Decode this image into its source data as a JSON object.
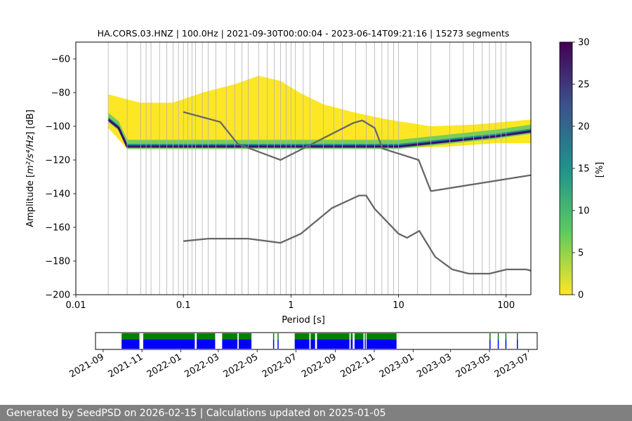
{
  "footer": {
    "text": "Generated by SeedPSD on 2026-02-15 | Calculations updated on 2025-01-05"
  },
  "chart_data": [
    {
      "type": "heatmap",
      "title": "HA.CORS.03.HNZ | 100.0Hz | 2021-09-30T00:00:04 - 2023-06-14T09:21:16 | 15273 segments",
      "xlabel": "Period [s]",
      "ylabel_main": "Amplitude [",
      "ylabel_math": "m²/s⁴/Hz",
      "ylabel_tail": "] [dB]",
      "x_scale": "log",
      "xlim": [
        0.01,
        170
      ],
      "ylim": [
        -200,
        -50
      ],
      "x_ticks": [
        {
          "value": 0.01,
          "label": "0.01"
        },
        {
          "value": 0.1,
          "label": "0.1"
        },
        {
          "value": 1,
          "label": "1"
        },
        {
          "value": 10,
          "label": "10"
        },
        {
          "value": 100,
          "label": "100"
        }
      ],
      "y_ticks": [
        {
          "value": -60,
          "label": "−60"
        },
        {
          "value": -80,
          "label": "−80"
        },
        {
          "value": -100,
          "label": "−100"
        },
        {
          "value": -120,
          "label": "−120"
        },
        {
          "value": -140,
          "label": "−140"
        },
        {
          "value": -160,
          "label": "−160"
        },
        {
          "value": -180,
          "label": "−180"
        },
        {
          "value": -200,
          "label": "−200"
        }
      ],
      "grid": "vertical",
      "vertical_grid_periods": [
        0.02,
        0.03,
        0.04,
        0.045,
        0.05,
        0.06,
        0.07,
        0.08,
        0.09,
        0.11,
        0.12,
        0.13,
        0.15,
        0.17,
        0.2,
        0.25,
        0.3,
        0.35,
        0.4,
        0.5,
        0.6,
        0.7,
        0.8,
        0.9,
        1.1,
        1.3,
        1.5,
        2,
        2.5,
        3,
        4,
        5,
        6,
        7,
        8,
        9,
        15,
        20,
        30,
        40,
        50,
        60,
        70,
        80,
        90
      ],
      "colorbar": {
        "label": "[%]",
        "min": 0,
        "max": 30,
        "ticks": [
          "0",
          "5",
          "10",
          "15",
          "20",
          "25",
          "30"
        ],
        "colormap": [
          "#fde725",
          "#5ec962",
          "#21918c",
          "#3b528b",
          "#440154"
        ]
      },
      "reference_curves": [
        {
          "name": "high noise model",
          "color": "#666666",
          "points": [
            [
              0.1,
              -91.5
            ],
            [
              0.22,
              -97.4
            ],
            [
              0.32,
              -110.5
            ],
            [
              0.8,
              -120
            ],
            [
              3.8,
              -98
            ],
            [
              4.6,
              -96.5
            ],
            [
              6,
              -101
            ],
            [
              7.1,
              -113.2
            ],
            [
              15.4,
              -120
            ],
            [
              20,
              -138.5
            ],
            [
              170,
              -129
            ]
          ]
        },
        {
          "name": "low noise model",
          "color": "#666666",
          "points": [
            [
              0.1,
              -168.2
            ],
            [
              0.17,
              -166.7
            ],
            [
              0.4,
              -166.7
            ],
            [
              0.8,
              -169.2
            ],
            [
              1.24,
              -163.7
            ],
            [
              2.4,
              -148.6
            ],
            [
              4.3,
              -141.1
            ],
            [
              5,
              -141.1
            ],
            [
              6,
              -149
            ],
            [
              10,
              -163.8
            ],
            [
              12,
              -166.2
            ],
            [
              15.6,
              -162.1
            ],
            [
              21.9,
              -177.5
            ],
            [
              31.6,
              -185
            ],
            [
              45,
              -187.5
            ],
            [
              70,
              -187.5
            ],
            [
              101,
              -185
            ],
            [
              154,
              -185
            ],
            [
              170,
              -185.7
            ]
          ]
        }
      ],
      "psd_density": {
        "mode_curve": [
          [
            0.02,
            -96
          ],
          [
            0.025,
            -101
          ],
          [
            0.03,
            -112
          ],
          [
            0.04,
            -112
          ],
          [
            0.3,
            -112
          ],
          [
            0.6,
            -112
          ],
          [
            1,
            -112
          ],
          [
            2,
            -112
          ],
          [
            5,
            -112
          ],
          [
            10,
            -112
          ],
          [
            20,
            -110
          ],
          [
            40,
            -108
          ],
          [
            80,
            -106
          ],
          [
            170,
            -103
          ]
        ],
        "upper_envelope": [
          [
            0.02,
            -81
          ],
          [
            0.03,
            -84
          ],
          [
            0.04,
            -86
          ],
          [
            0.08,
            -86
          ],
          [
            0.15,
            -80
          ],
          [
            0.3,
            -75
          ],
          [
            0.5,
            -70
          ],
          [
            0.8,
            -73
          ],
          [
            1.2,
            -80
          ],
          [
            2,
            -87
          ],
          [
            4,
            -92
          ],
          [
            8,
            -96
          ],
          [
            20,
            -100
          ],
          [
            50,
            -99
          ],
          [
            170,
            -96
          ]
        ],
        "lower_envelope": [
          [
            0.02,
            -101
          ],
          [
            0.03,
            -113.5
          ],
          [
            1,
            -113
          ],
          [
            10,
            -113
          ],
          [
            30,
            -112
          ],
          [
            80,
            -110
          ],
          [
            170,
            -110
          ]
        ]
      }
    },
    {
      "type": "timeline",
      "x_ticks": [
        "2021-09",
        "2021-11",
        "2022-01",
        "2022-03",
        "2022-05",
        "2022-07",
        "2022-09",
        "2022-11",
        "2023-01",
        "2023-03",
        "2023-05",
        "2023-07"
      ],
      "date_range": [
        "2021-08-20",
        "2023-07-15"
      ],
      "tick_dates": [
        "2021-09-01",
        "2021-11-01",
        "2022-01-01",
        "2022-03-01",
        "2022-05-01",
        "2022-07-01",
        "2022-09-01",
        "2022-11-01",
        "2023-01-01",
        "2023-03-01",
        "2023-05-01",
        "2023-07-01"
      ],
      "colors": {
        "data": "#0000ff",
        "processed": "#008000"
      },
      "segments": [
        [
          "2021-09-30",
          "2021-10-28"
        ],
        [
          "2021-11-03",
          "2022-01-23"
        ],
        [
          "2022-01-26",
          "2022-02-24"
        ],
        [
          "2022-03-07",
          "2022-03-31"
        ],
        [
          "2022-04-02",
          "2022-04-22"
        ],
        [
          "2022-05-26",
          "2022-05-27"
        ],
        [
          "2022-06-02",
          "2022-06-03"
        ],
        [
          "2022-06-29",
          "2022-07-22"
        ],
        [
          "2022-07-24",
          "2022-07-31"
        ],
        [
          "2022-08-03",
          "2022-09-23"
        ],
        [
          "2022-09-25",
          "2022-09-28"
        ],
        [
          "2022-10-01",
          "2022-10-15"
        ],
        [
          "2022-10-17",
          "2022-10-18"
        ],
        [
          "2022-10-20",
          "2022-12-06"
        ],
        [
          "2023-05-01",
          "2023-05-02"
        ],
        [
          "2023-05-14",
          "2023-05-15"
        ],
        [
          "2023-05-26",
          "2023-05-27"
        ],
        [
          "2023-06-13",
          "2023-06-14"
        ]
      ]
    }
  ]
}
